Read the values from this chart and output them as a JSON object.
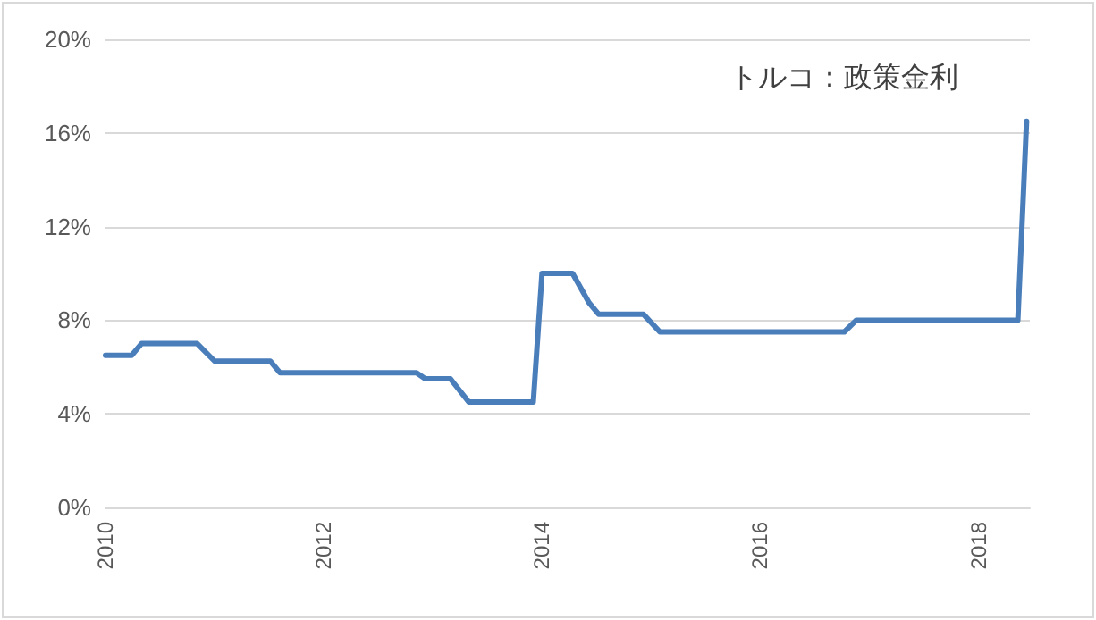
{
  "chart_data": {
    "type": "line",
    "title": "トルコ：政策金利",
    "x": [
      2010,
      2010.24,
      2010.33,
      2010.84,
      2011.0,
      2011.51,
      2011.6,
      2012.85,
      2012.93,
      2013.16,
      2013.33,
      2013.92,
      2014.0,
      2014.28,
      2014.43,
      2014.52,
      2014.93,
      2015.08,
      2016.77,
      2016.88,
      2018.36,
      2018.44
    ],
    "series": [
      {
        "color": "#4a7ebb",
        "values": [
          6.5,
          6.5,
          7.0,
          7.0,
          6.25,
          6.25,
          5.75,
          5.75,
          5.5,
          5.5,
          4.5,
          4.5,
          10.0,
          10.0,
          8.75,
          8.25,
          8.25,
          7.5,
          7.5,
          8.0,
          8.0,
          16.5
        ]
      }
    ],
    "xlim": [
      2010,
      2018.47
    ],
    "xticks": [
      2010,
      2012,
      2014,
      2016,
      2018
    ],
    "ylim": [
      0,
      20
    ],
    "yticks": [
      {
        "value": 0,
        "label": "0%"
      },
      {
        "value": 4,
        "label": "4%"
      },
      {
        "value": 8,
        "label": "8%"
      },
      {
        "value": 12,
        "label": "12%"
      },
      {
        "value": 16,
        "label": "16%"
      },
      {
        "value": 20,
        "label": "20%"
      }
    ],
    "grid": "y",
    "marker": "none",
    "line_style": "solid"
  }
}
